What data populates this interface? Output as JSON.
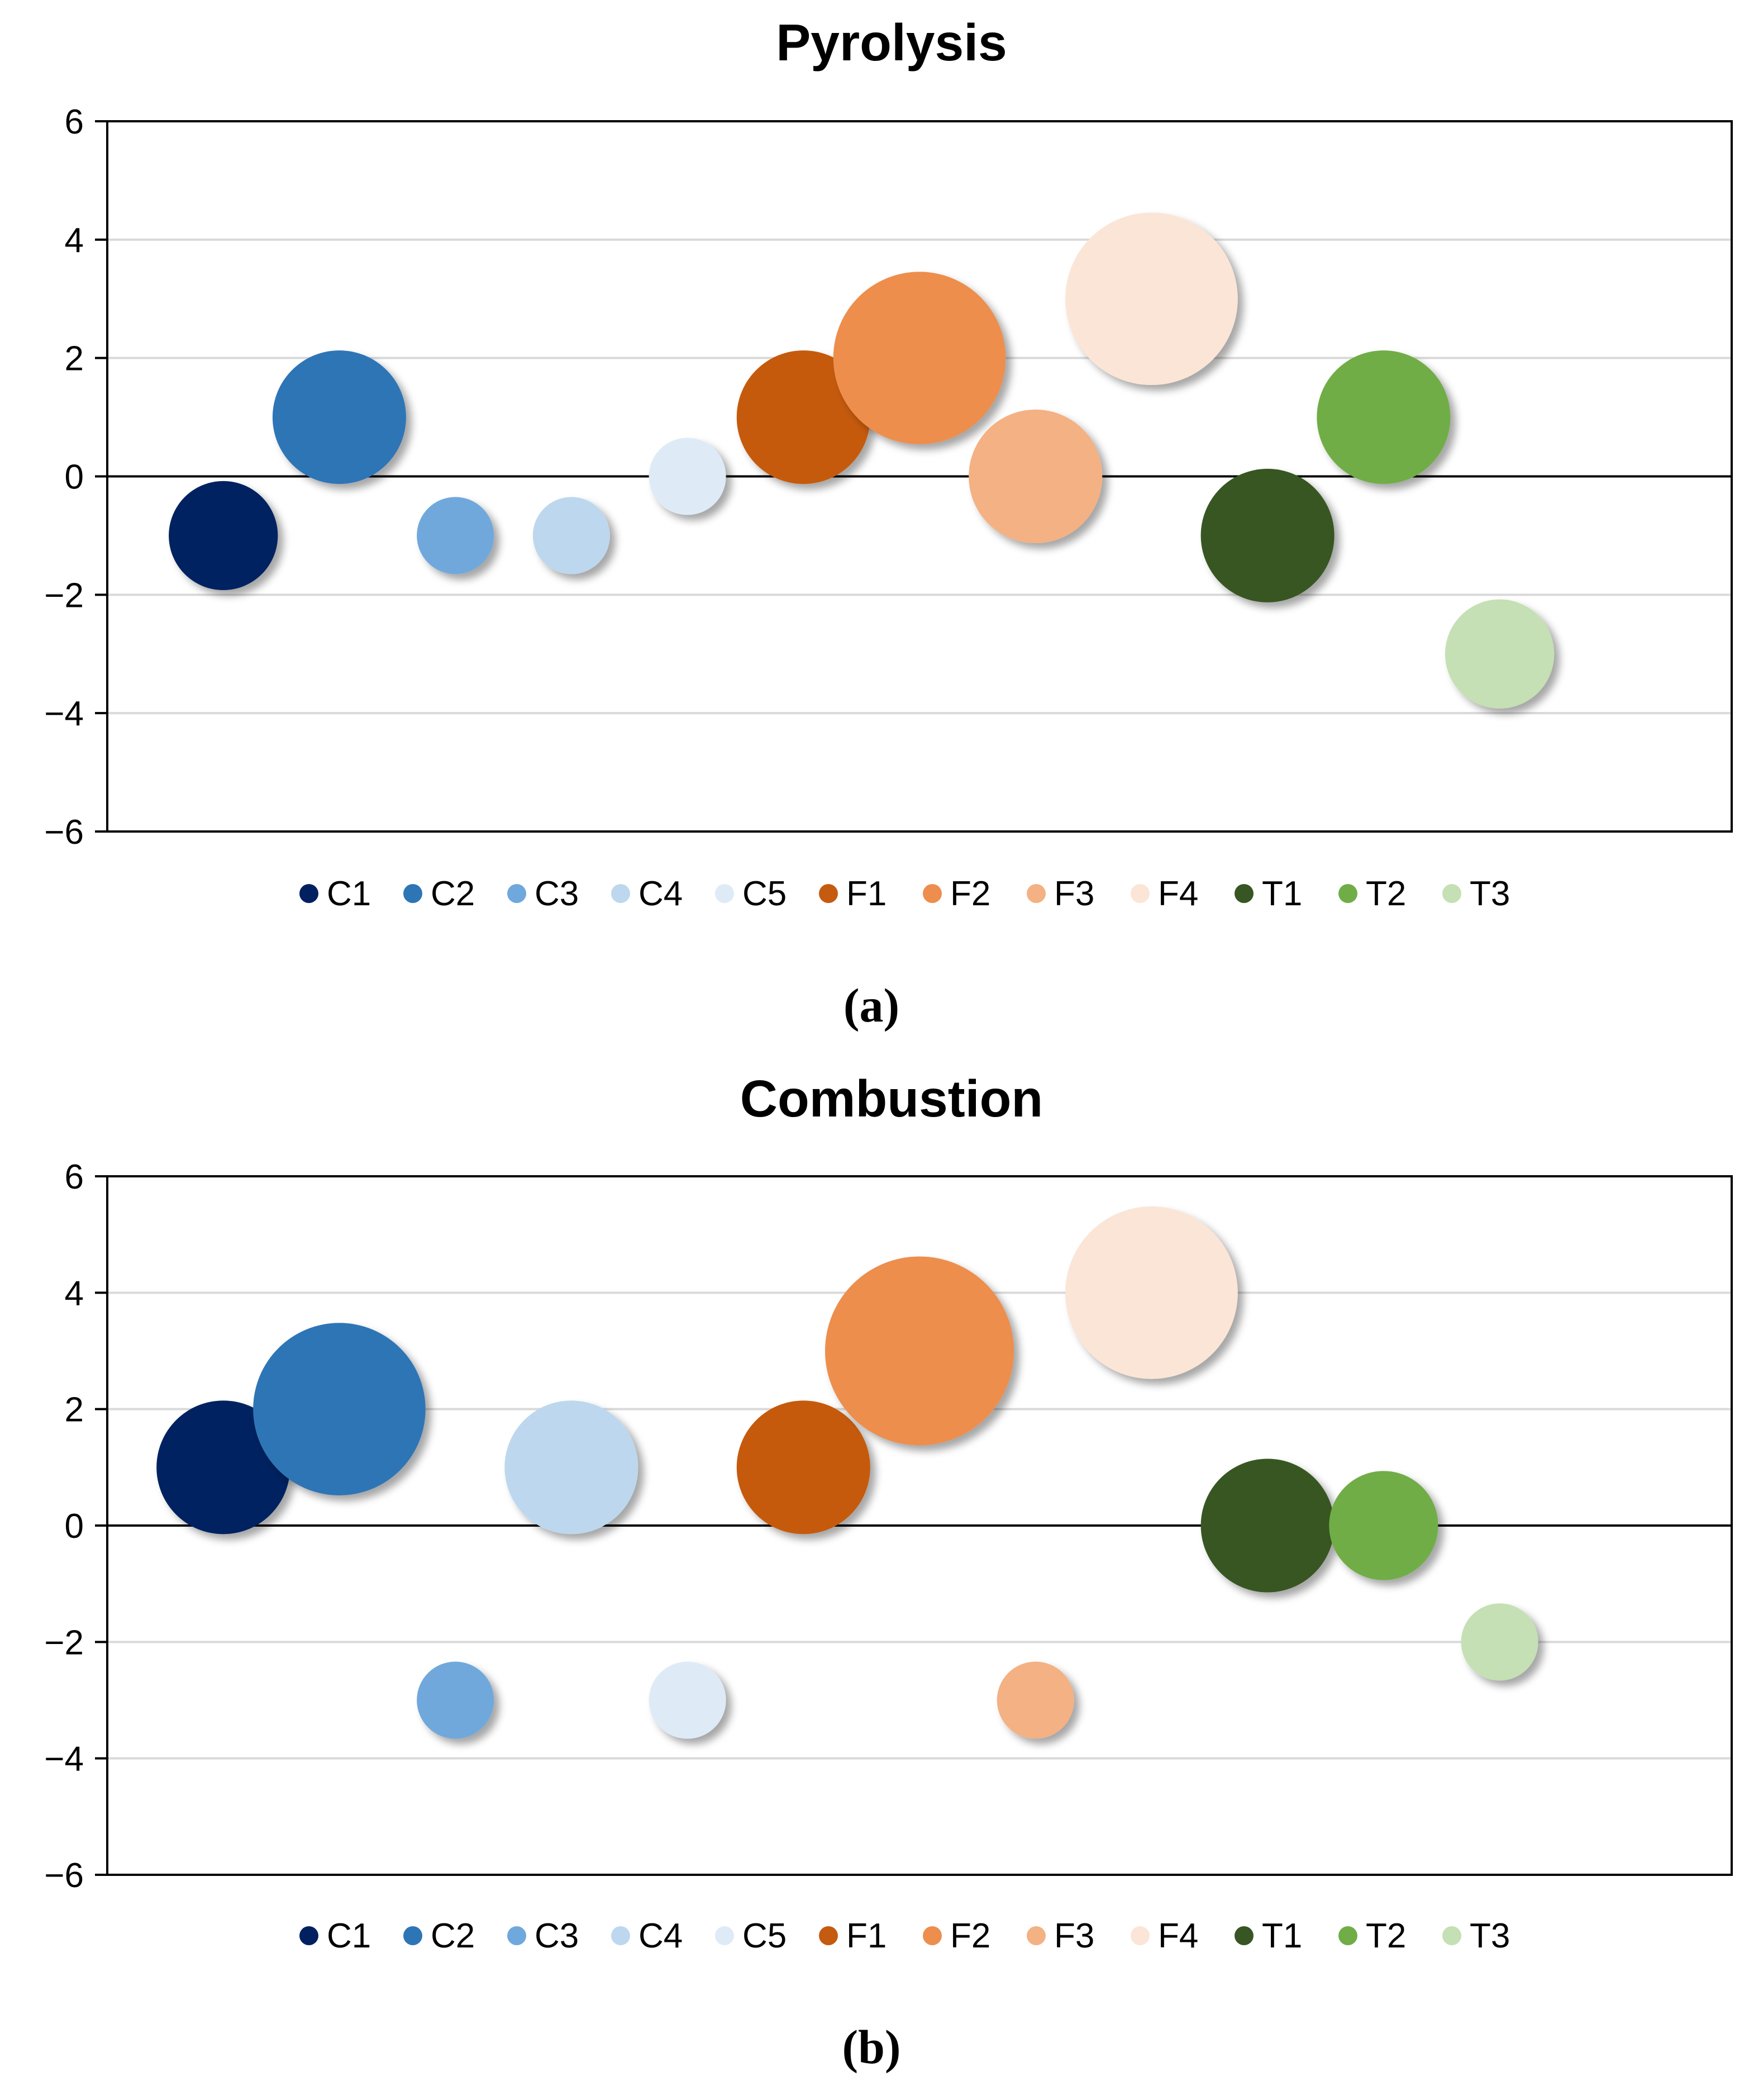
{
  "chart_data": [
    {
      "type": "bubble",
      "title": "Pyrolysis",
      "caption": "(a)",
      "xlabel": "",
      "ylabel": "",
      "ylim": [
        -6,
        6
      ],
      "yticks": [
        6,
        4,
        2,
        0,
        -2,
        -4,
        -6
      ],
      "ytick_labels": [
        "6",
        "4",
        "2",
        "0",
        "−2",
        "−4",
        "−6"
      ],
      "grid": true,
      "legend_position": "bottom",
      "series": [
        {
          "name": "C1",
          "x": 1,
          "y": -1,
          "size": 2,
          "color": "#002060"
        },
        {
          "name": "C2",
          "x": 2,
          "y": 1,
          "size": 3,
          "color": "#2E75B6"
        },
        {
          "name": "C3",
          "x": 3,
          "y": -1,
          "size": 1,
          "color": "#6FA8DC"
        },
        {
          "name": "C4",
          "x": 4,
          "y": -1,
          "size": 1,
          "color": "#BDD7EE"
        },
        {
          "name": "C5",
          "x": 5,
          "y": 0,
          "size": 1,
          "color": "#DEEBF7"
        },
        {
          "name": "F1",
          "x": 6,
          "y": 1,
          "size": 3,
          "color": "#C55A11"
        },
        {
          "name": "F2",
          "x": 7,
          "y": 2,
          "size": 5,
          "color": "#ED8E4E"
        },
        {
          "name": "F3",
          "x": 8,
          "y": 0,
          "size": 3,
          "color": "#F4B183"
        },
        {
          "name": "F4",
          "x": 9,
          "y": 3,
          "size": 5,
          "color": "#FBE5D6"
        },
        {
          "name": "T1",
          "x": 10,
          "y": -1,
          "size": 3,
          "color": "#375623"
        },
        {
          "name": "T2",
          "x": 11,
          "y": 1,
          "size": 3,
          "color": "#70AD47"
        },
        {
          "name": "T3",
          "x": 12,
          "y": -3,
          "size": 2,
          "color": "#C5E0B4"
        }
      ]
    },
    {
      "type": "bubble",
      "title": "Combustion",
      "caption": "(b)",
      "xlabel": "",
      "ylabel": "",
      "ylim": [
        -6,
        6
      ],
      "yticks": [
        6,
        4,
        2,
        0,
        -2,
        -4,
        -6
      ],
      "ytick_labels": [
        "6",
        "4",
        "2",
        "0",
        "−2",
        "−4",
        "−6"
      ],
      "grid": true,
      "legend_position": "bottom",
      "series": [
        {
          "name": "C1",
          "x": 1,
          "y": 1,
          "size": 3,
          "color": "#002060"
        },
        {
          "name": "C2",
          "x": 2,
          "y": 2,
          "size": 5,
          "color": "#2E75B6"
        },
        {
          "name": "C3",
          "x": 3,
          "y": -3,
          "size": 1,
          "color": "#6FA8DC"
        },
        {
          "name": "C4",
          "x": 4,
          "y": 1,
          "size": 3,
          "color": "#BDD7EE"
        },
        {
          "name": "C5",
          "x": 5,
          "y": -3,
          "size": 1,
          "color": "#DEEBF7"
        },
        {
          "name": "F1",
          "x": 6,
          "y": 1,
          "size": 3,
          "color": "#C55A11"
        },
        {
          "name": "F2",
          "x": 7,
          "y": 3,
          "size": 6,
          "color": "#ED8E4E"
        },
        {
          "name": "F3",
          "x": 8,
          "y": -3,
          "size": 1,
          "color": "#F4B183"
        },
        {
          "name": "F4",
          "x": 9,
          "y": 4,
          "size": 5,
          "color": "#FBE5D6"
        },
        {
          "name": "T1",
          "x": 10,
          "y": 0,
          "size": 3,
          "color": "#375623"
        },
        {
          "name": "T2",
          "x": 11,
          "y": 0,
          "size": 2,
          "color": "#70AD47"
        },
        {
          "name": "T3",
          "x": 12,
          "y": -2,
          "size": 1,
          "color": "#C5E0B4"
        }
      ]
    }
  ]
}
